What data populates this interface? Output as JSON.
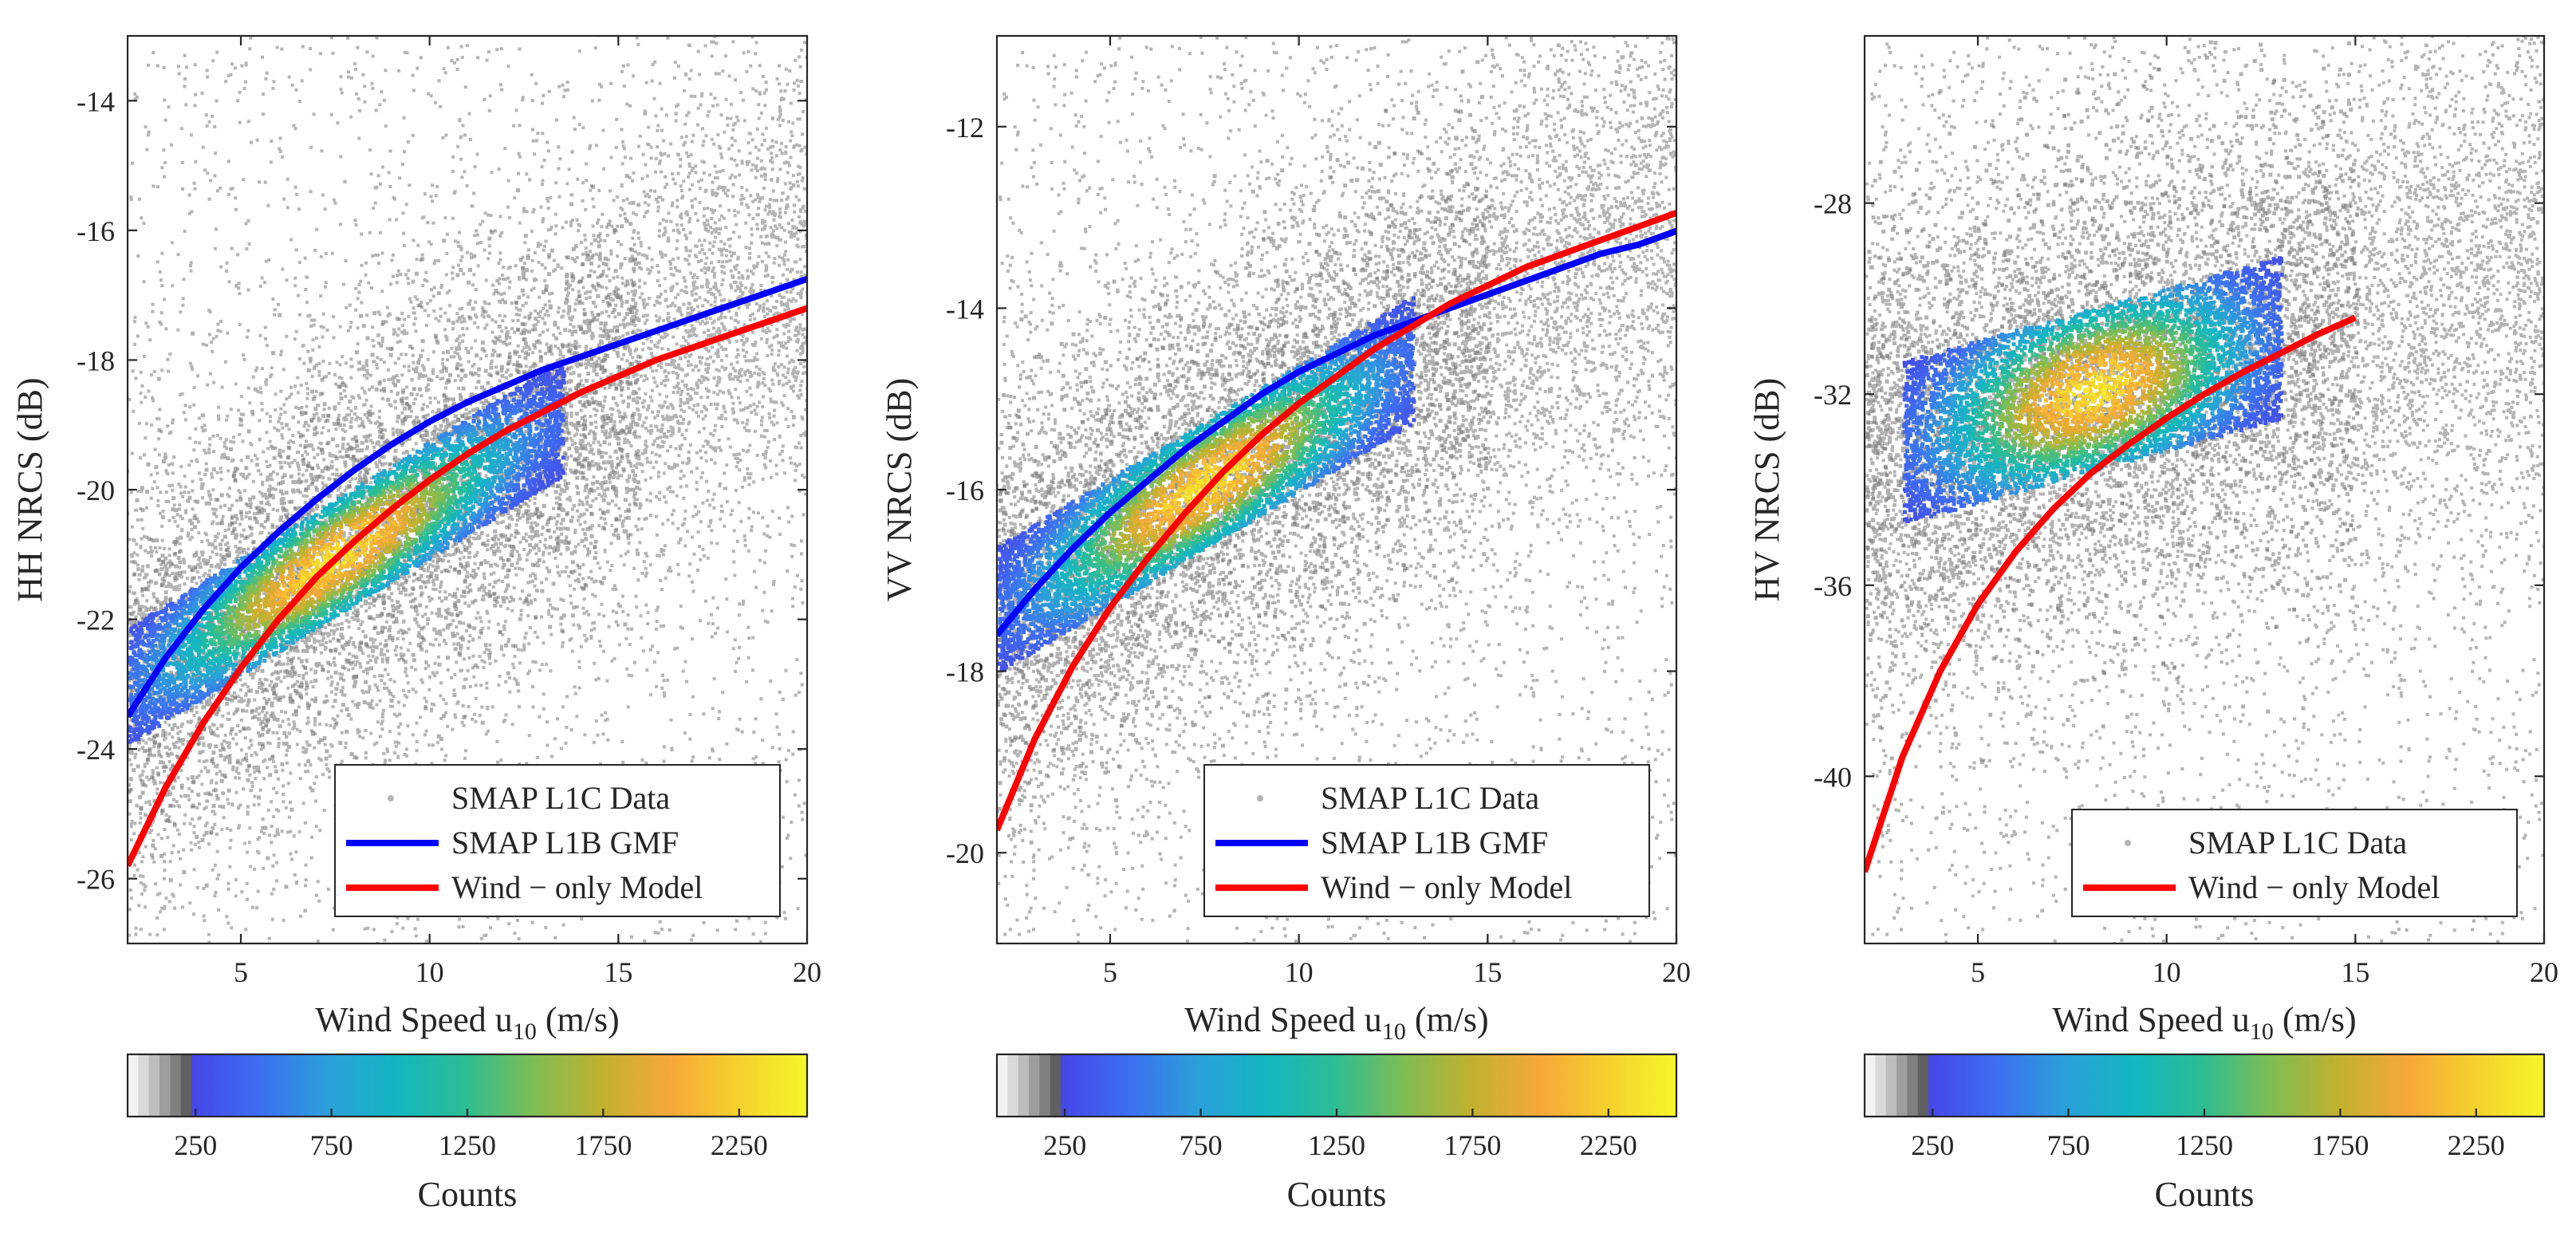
{
  "figure": {
    "panel_count": 3
  },
  "colors": {
    "scatter_gray": "#b4b4b4",
    "gmf_blue": "#0000ff",
    "model_red": "#ff0000",
    "axis": "#262626",
    "colormap": [
      "#f2f2f2",
      "#d9d9d9",
      "#bdbdbd",
      "#9e9e9e",
      "#808080",
      "#606060",
      "#4646e6",
      "#3d6ff2",
      "#2ba0d9",
      "#13b6c2",
      "#2cbd94",
      "#7ebd54",
      "#c2b12e",
      "#f6a838",
      "#f5d12e",
      "#f5f52a"
    ]
  },
  "chart_data": [
    {
      "type": "scatter",
      "panel": "HH",
      "xlabel_prefix": "Wind Speed u",
      "xlabel_sub": "10",
      "xlabel_suffix": " (m/s)",
      "ylabel": "HH NRCS (dB)",
      "xlim": [
        2,
        20
      ],
      "ylim": [
        -27,
        -13
      ],
      "xticks": [
        5,
        10,
        15,
        20
      ],
      "yticks": [
        -14,
        -16,
        -18,
        -20,
        -22,
        -24,
        -26
      ],
      "density": {
        "slope": 0.36,
        "intercept": -23.0,
        "noise": 1.4,
        "dense_x": [
          2,
          13.5
        ],
        "dense_y_half": 0.9,
        "peak_x": 7.5
      },
      "series": [
        {
          "name": "SMAP L1C Data",
          "kind": "scatter"
        },
        {
          "name": "SMAP L1B GMF",
          "kind": "line",
          "color": "#0000ff",
          "x": [
            2,
            3,
            4,
            5,
            6,
            7,
            8,
            9,
            10,
            11,
            12,
            13,
            14,
            15,
            16,
            17,
            18,
            19,
            20
          ],
          "y": [
            -23.5,
            -22.6,
            -21.85,
            -21.2,
            -20.65,
            -20.15,
            -19.7,
            -19.3,
            -18.95,
            -18.65,
            -18.4,
            -18.15,
            -17.95,
            -17.75,
            -17.55,
            -17.35,
            -17.15,
            -16.95,
            -16.75
          ]
        },
        {
          "name": "Wind − only Model",
          "kind": "line",
          "color": "#ff0000",
          "x": [
            2,
            3,
            4,
            5,
            6,
            7,
            8,
            9,
            10,
            11,
            12,
            13,
            14,
            15,
            16,
            17,
            18,
            19,
            20
          ],
          "y": [
            -25.8,
            -24.6,
            -23.6,
            -22.75,
            -22.0,
            -21.35,
            -20.8,
            -20.3,
            -19.85,
            -19.45,
            -19.1,
            -18.8,
            -18.5,
            -18.25,
            -18.0,
            -17.8,
            -17.6,
            -17.4,
            -17.2
          ]
        }
      ],
      "legend": {
        "entries": [
          "SMAP L1C Data",
          "SMAP L1B GMF",
          "Wind − only Model"
        ]
      },
      "colorbar": {
        "label": "Counts",
        "ticks": [
          250,
          750,
          1250,
          1750,
          2250
        ],
        "range": [
          0,
          2500
        ]
      }
    },
    {
      "type": "scatter",
      "panel": "VV",
      "xlabel_prefix": "Wind Speed u",
      "xlabel_sub": "10",
      "xlabel_suffix": " (m/s)",
      "ylabel": "VV NRCS (dB)",
      "xlim": [
        2,
        20
      ],
      "ylim": [
        -21,
        -11
      ],
      "xticks": [
        5,
        10,
        15,
        20
      ],
      "yticks": [
        -12,
        -14,
        -16,
        -18,
        -20
      ],
      "density": {
        "slope": 0.25,
        "intercept": -17.3,
        "noise": 1.1,
        "dense_x": [
          2,
          13
        ],
        "dense_y_half": 0.7,
        "peak_x": 7.5
      },
      "series": [
        {
          "name": "SMAP L1C Data",
          "kind": "scatter"
        },
        {
          "name": "SMAP L1B GMF",
          "kind": "line",
          "color": "#0000ff",
          "x": [
            2,
            3,
            4,
            5,
            6,
            7,
            8,
            9,
            10,
            11,
            12,
            13,
            14,
            15,
            16,
            17,
            18,
            19,
            20
          ],
          "y": [
            -17.6,
            -17.1,
            -16.65,
            -16.25,
            -15.9,
            -15.55,
            -15.25,
            -14.95,
            -14.7,
            -14.5,
            -14.3,
            -14.15,
            -14.0,
            -13.85,
            -13.7,
            -13.55,
            -13.4,
            -13.3,
            -13.15
          ]
        },
        {
          "name": "Wind − only Model",
          "kind": "line",
          "color": "#ff0000",
          "x": [
            2,
            3,
            4,
            5,
            6,
            7,
            8,
            9,
            10,
            11,
            12,
            13,
            14,
            15,
            16,
            17,
            18,
            19,
            20
          ],
          "y": [
            -19.75,
            -18.75,
            -17.95,
            -17.3,
            -16.75,
            -16.25,
            -15.8,
            -15.4,
            -15.05,
            -14.75,
            -14.45,
            -14.2,
            -13.95,
            -13.75,
            -13.55,
            -13.4,
            -13.25,
            -13.1,
            -12.95
          ]
        }
      ],
      "legend": {
        "entries": [
          "SMAP L1C Data",
          "SMAP L1B GMF",
          "Wind − only Model"
        ]
      },
      "colorbar": {
        "label": "Counts",
        "ticks": [
          250,
          750,
          1250,
          1750,
          2250
        ],
        "range": [
          0,
          2500
        ]
      }
    },
    {
      "type": "scatter",
      "panel": "HV",
      "xlabel_prefix": "Wind Speed u",
      "xlabel_sub": "10",
      "xlabel_suffix": " (m/s)",
      "ylabel": "HV NRCS (dB)",
      "xlim": [
        2,
        20
      ],
      "ylim": [
        -43.5,
        -24.5
      ],
      "xticks": [
        5,
        10,
        15,
        20
      ],
      "yticks": [
        -28,
        -32,
        -36,
        -40
      ],
      "density": {
        "slope": 0.22,
        "intercept": -33.2,
        "noise": 2.3,
        "dense_x": [
          3,
          13
        ],
        "dense_y_half": 1.7,
        "peak_x": 8.0
      },
      "series": [
        {
          "name": "SMAP L1C Data",
          "kind": "scatter"
        },
        {
          "name": "Wind − only Model",
          "kind": "line",
          "color": "#ff0000",
          "x": [
            2,
            3,
            4,
            5,
            6,
            7,
            8,
            9,
            10,
            11,
            12,
            13,
            14,
            15
          ],
          "y": [
            -42.0,
            -39.6,
            -37.8,
            -36.4,
            -35.3,
            -34.4,
            -33.65,
            -33.05,
            -32.5,
            -32.0,
            -31.55,
            -31.15,
            -30.75,
            -30.4
          ]
        }
      ],
      "legend": {
        "entries": [
          "SMAP L1C Data",
          "Wind − only Model"
        ]
      },
      "colorbar": {
        "label": "Counts",
        "ticks": [
          250,
          750,
          1250,
          1750,
          2250
        ],
        "range": [
          0,
          2500
        ]
      }
    }
  ]
}
